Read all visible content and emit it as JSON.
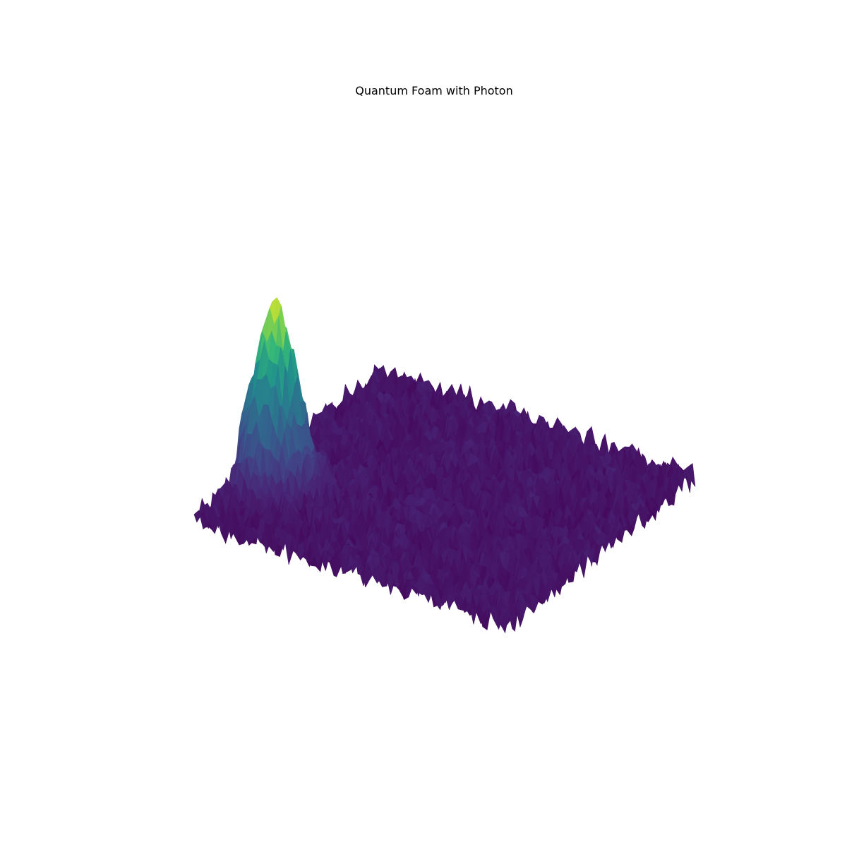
{
  "chart_data": {
    "type": "surface3d",
    "title": "Quantum Foam with Photon",
    "colormap": "viridis",
    "axes_visible": false,
    "grid": false,
    "series": [
      {
        "surface": "background-foam",
        "z_mean": 0.0,
        "z_noise_amplitude": 0.08
      },
      {
        "surface": "photon-peak",
        "shape": "gaussian",
        "peak_height": 1.0,
        "width": 0.06,
        "center_u": 0.08,
        "center_v": 0.3
      }
    ],
    "colors": {
      "low": "#440154",
      "high": "#fde725"
    }
  }
}
